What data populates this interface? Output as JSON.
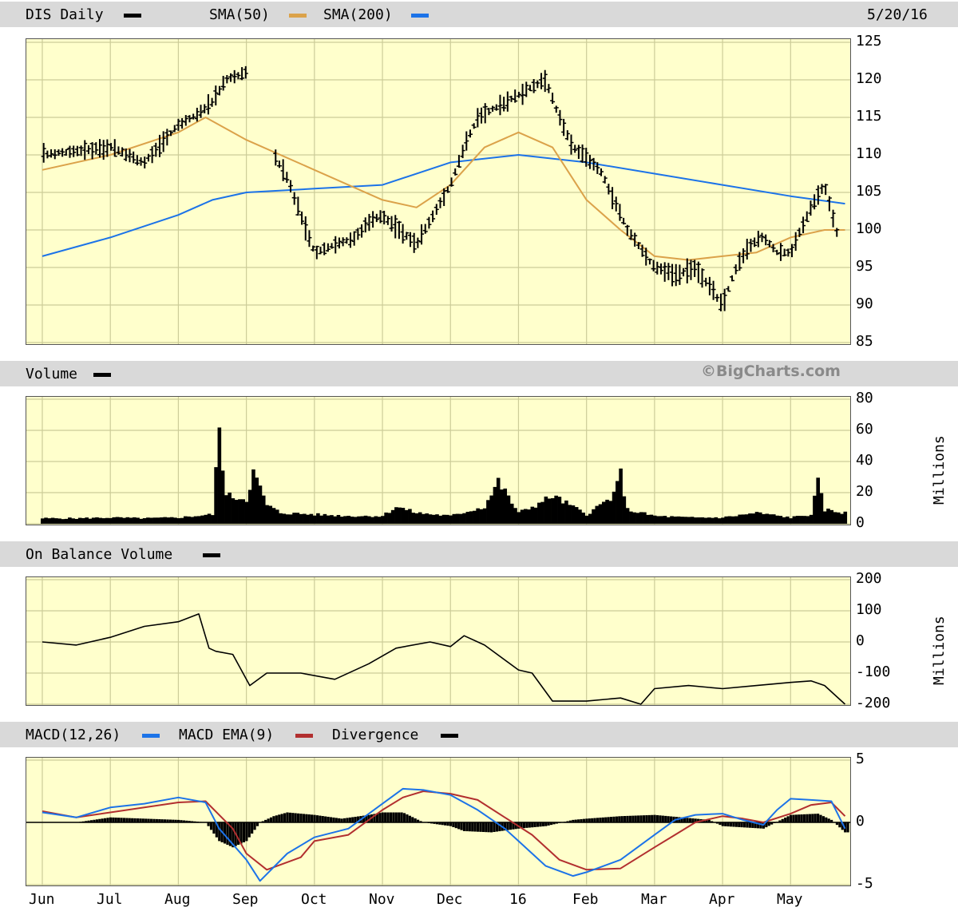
{
  "header": {
    "title": "DIS Daily",
    "sma50_label": "SMA(50)",
    "sma200_label": "SMA(200)",
    "date": "5/20/16"
  },
  "volume_header": {
    "title": "Volume",
    "brand": "©BigCharts.com"
  },
  "obv_header": {
    "title": "On Balance Volume"
  },
  "macd_header": {
    "macd_label": "MACD(12,26)",
    "ema_label": "MACD EMA(9)",
    "div_label": "Divergence"
  },
  "units": {
    "volume": "Millions",
    "obv": "Millions"
  },
  "colors": {
    "panel_bg": "#ffffcc",
    "grid": "#cccc99",
    "price": "#000000",
    "sma50": "#dba24a",
    "sma200": "#1c73e8",
    "macd": "#1c73e8",
    "ema": "#b22f2f",
    "divergence": "#000000"
  },
  "chart_data": [
    {
      "type": "line",
      "title": "DIS Daily",
      "x_ticks": [
        "Jun",
        "Jul",
        "Aug",
        "Sep",
        "Oct",
        "Nov",
        "Dec",
        "16",
        "Feb",
        "Mar",
        "Apr",
        "May"
      ],
      "ylim": [
        85,
        125
      ],
      "y_ticks": [
        "125",
        "120",
        "115",
        "110",
        "105",
        "100",
        "95",
        "90",
        "85"
      ],
      "series": [
        {
          "name": "DIS Daily",
          "style": "ohlc-bars",
          "x": [
            0,
            1,
            1.5,
            2,
            2.2,
            2.5,
            2.7,
            3,
            3.4,
            3.6,
            4,
            4.6,
            4.8,
            5,
            5.5,
            6,
            6.2,
            6.4,
            6.8,
            7.2,
            7.4,
            7.6,
            7.8,
            8.2,
            8.6,
            9,
            9.3,
            9.6,
            10,
            10.2,
            10.4,
            10.6,
            10.8,
            11,
            11.3,
            11.5,
            11.7
          ],
          "values": [
            110,
            111,
            109,
            114,
            115,
            117,
            120,
            121,
            110,
            107,
            97,
            99,
            101,
            102,
            98,
            106,
            111,
            115,
            117,
            119,
            120,
            115,
            111,
            108,
            100,
            95,
            94,
            95,
            90,
            95,
            98,
            99,
            97,
            97,
            103,
            106,
            99
          ]
        },
        {
          "name": "SMA(50)",
          "x": [
            0,
            1,
            2,
            2.4,
            3,
            4,
            5,
            5.5,
            6,
            6.5,
            7,
            7.5,
            8,
            8.5,
            9,
            9.5,
            10,
            10.5,
            11,
            11.5,
            11.8
          ],
          "values": [
            108,
            110,
            113,
            115,
            112,
            108,
            104,
            103,
            106,
            111,
            113,
            111,
            104,
            100,
            96.5,
            96,
            96.5,
            97,
            99,
            100,
            100
          ]
        },
        {
          "name": "SMA(200)",
          "x": [
            0,
            1,
            2,
            2.5,
            3,
            4,
            5,
            6,
            7,
            8,
            9,
            10,
            11,
            11.8
          ],
          "values": [
            96.5,
            99,
            102,
            104,
            105,
            105.5,
            106,
            109,
            110,
            109,
            107.5,
            106,
            104.5,
            103.5
          ]
        }
      ]
    },
    {
      "type": "bar",
      "title": "Volume",
      "ylim": [
        0,
        80
      ],
      "y_ticks": [
        "80",
        "60",
        "40",
        "20",
        "0"
      ],
      "x": [
        0,
        0.5,
        1,
        1.5,
        2,
        2.5,
        2.6,
        2.7,
        3,
        3.1,
        3.3,
        3.5,
        4,
        4.5,
        5,
        5.2,
        5.5,
        6,
        6.5,
        6.7,
        7,
        7.3,
        7.5,
        8,
        8.4,
        8.5,
        8.6,
        9,
        9.5,
        10,
        10.5,
        11,
        11.3,
        11.4,
        11.5,
        11.8
      ],
      "values": [
        3.5,
        3.5,
        4,
        3.5,
        4,
        6,
        60,
        18,
        16,
        33,
        12,
        7,
        6,
        5,
        5,
        11,
        7,
        5,
        11,
        27,
        7,
        13,
        18,
        6,
        18,
        32,
        9,
        5,
        4,
        4,
        7,
        4,
        6,
        26,
        9,
        7
      ]
    },
    {
      "type": "line",
      "title": "On Balance Volume",
      "ylim": [
        -200,
        200
      ],
      "y_ticks": [
        "200",
        "100",
        "0",
        "-100",
        "-200"
      ],
      "series": [
        {
          "name": "On Balance Volume",
          "x": [
            0,
            0.5,
            1,
            1.5,
            2,
            2.3,
            2.45,
            2.55,
            2.8,
            3.05,
            3.3,
            3.8,
            4.3,
            4.8,
            5.2,
            5.7,
            6,
            6.2,
            6.5,
            7,
            7.2,
            7.5,
            8,
            8.5,
            8.8,
            9,
            9.5,
            10,
            10.5,
            11,
            11.3,
            11.5,
            11.8
          ],
          "values": [
            0,
            -10,
            15,
            50,
            65,
            90,
            -20,
            -30,
            -40,
            -140,
            -100,
            -100,
            -120,
            -70,
            -20,
            0,
            -15,
            20,
            -10,
            -90,
            -100,
            -190,
            -190,
            -180,
            -200,
            -150,
            -140,
            -150,
            -140,
            -130,
            -125,
            -140,
            -200
          ]
        }
      ]
    },
    {
      "type": "line",
      "title": "MACD",
      "ylim": [
        -5,
        5
      ],
      "y_ticks": [
        "5",
        "0",
        "-5"
      ],
      "series": [
        {
          "name": "MACD(12,26)",
          "x": [
            0,
            0.5,
            1,
            1.5,
            2,
            2.4,
            2.6,
            3,
            3.2,
            3.6,
            4,
            4.5,
            5,
            5.3,
            5.6,
            6,
            6.4,
            6.8,
            7,
            7.4,
            7.8,
            8,
            8.5,
            9,
            9.3,
            9.6,
            10,
            10.3,
            10.6,
            10.8,
            11,
            11.3,
            11.6,
            11.8
          ],
          "values": [
            0.8,
            0.4,
            1.2,
            1.5,
            2,
            1.6,
            -0.5,
            -3,
            -4.7,
            -2.5,
            -1.2,
            -0.5,
            1.5,
            2.7,
            2.6,
            2.2,
            1,
            -0.5,
            -1.5,
            -3.5,
            -4.3,
            -4,
            -3,
            -1,
            0.2,
            0.6,
            0.7,
            0.2,
            -0.2,
            1,
            1.9,
            1.8,
            1.7,
            -0.5
          ]
        },
        {
          "name": "MACD EMA(9)",
          "x": [
            0,
            0.5,
            1,
            1.5,
            2,
            2.4,
            2.8,
            3,
            3.3,
            3.8,
            4,
            4.5,
            5,
            5.3,
            5.6,
            6,
            6.4,
            6.8,
            7.2,
            7.6,
            8,
            8.5,
            9,
            9.3,
            9.6,
            10,
            10.3,
            10.6,
            11,
            11.3,
            11.6,
            11.8
          ],
          "values": [
            0.9,
            0.4,
            0.8,
            1.2,
            1.6,
            1.7,
            -0.5,
            -2.5,
            -3.8,
            -2.8,
            -1.5,
            -1,
            1,
            2,
            2.5,
            2.3,
            1.8,
            0.4,
            -1,
            -3,
            -3.8,
            -3.7,
            -2,
            -1,
            0,
            0.5,
            0.3,
            0,
            0.7,
            1.4,
            1.6,
            0.5
          ]
        },
        {
          "name": "Divergence",
          "x": [
            0,
            0.5,
            1,
            1.5,
            2,
            2.4,
            2.6,
            2.8,
            3,
            3.2,
            3.4,
            3.6,
            4,
            4.4,
            4.8,
            5,
            5.3,
            5.6,
            6,
            6.2,
            6.6,
            7,
            7.4,
            7.8,
            8,
            8.5,
            9,
            9.4,
            9.8,
            10,
            10.3,
            10.6,
            11,
            11.4,
            11.6,
            11.8
          ],
          "values": [
            0,
            0,
            0.4,
            0.3,
            0.2,
            0,
            -1.5,
            -2,
            -1.5,
            0,
            0.5,
            0.8,
            0.6,
            0.3,
            0.6,
            0.8,
            0.8,
            0,
            -0.3,
            -0.7,
            -0.8,
            -0.5,
            -0.3,
            0.2,
            0.3,
            0.5,
            0.6,
            0.4,
            0.2,
            -0.3,
            -0.4,
            -0.5,
            0.6,
            0.7,
            0.2,
            -0.8
          ]
        }
      ]
    }
  ]
}
